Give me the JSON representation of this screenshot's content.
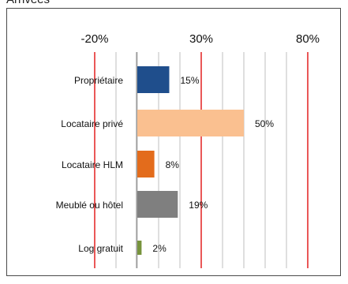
{
  "chart_data": {
    "type": "bar",
    "orientation": "horizontal",
    "title": "Arrivées",
    "categories": [
      "Propriétaire",
      "Locataire privé",
      "Locataire HLM",
      "Meublé ou hôtel",
      "Log gratuit"
    ],
    "values": [
      15,
      50,
      8,
      19,
      2
    ],
    "value_labels": [
      "15%",
      "50%",
      "8%",
      "19%",
      "2%"
    ],
    "bar_colors": [
      "#1f4e8c",
      "#fac090",
      "#e36c1c",
      "#7f7f7f",
      "#77933c"
    ],
    "xlim": [
      -20,
      80
    ],
    "major_ticks": [
      -20,
      30,
      80
    ],
    "tick_labels": [
      "-20%",
      "30%",
      "80%"
    ],
    "minor_step": 10,
    "grid": true,
    "major_gridline_color": "#e01010",
    "minor_gridline_color": "#bfbfbf",
    "axis_position": "top"
  }
}
